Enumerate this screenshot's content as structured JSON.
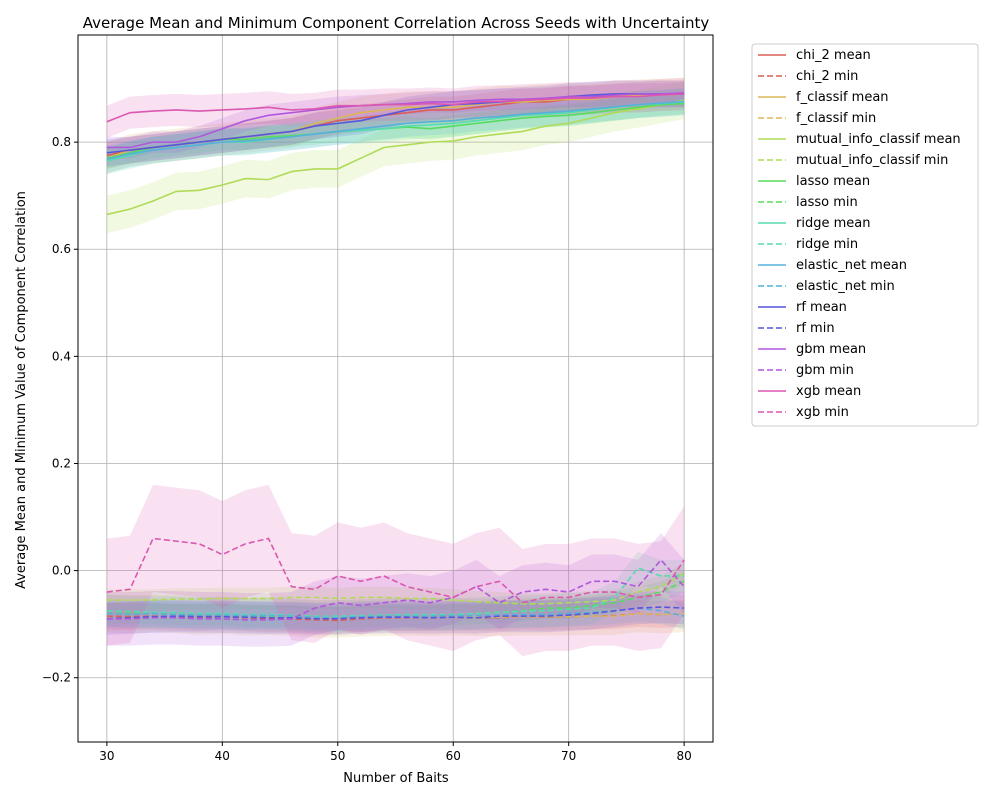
{
  "chart_data": {
    "type": "line",
    "title": "Average Mean and Minimum Component Correlation Across Seeds with Uncertainty",
    "xlabel": "Number of Baits",
    "ylabel": "Average Mean and Minimum Value of Component Correlation",
    "xlim": [
      27.5,
      82.5
    ],
    "ylim": [
      -0.32,
      1.0
    ],
    "xticks": [
      30,
      40,
      50,
      60,
      70,
      80
    ],
    "xtick_labels": [
      "30",
      "40",
      "50",
      "60",
      "70",
      "80"
    ],
    "yticks": [
      -0.2,
      0.0,
      0.2,
      0.4,
      0.6,
      0.8
    ],
    "ytick_labels": [
      "−0.2",
      "0.0",
      "0.2",
      "0.4",
      "0.6",
      "0.8"
    ],
    "grid": true,
    "legend_position": "outside-right",
    "x": [
      30,
      32,
      34,
      36,
      38,
      40,
      42,
      44,
      46,
      48,
      50,
      52,
      54,
      56,
      58,
      60,
      62,
      64,
      66,
      68,
      70,
      72,
      74,
      76,
      78,
      80
    ],
    "series": [
      {
        "name": "chi_2 mean",
        "method": "chi_2",
        "kind": "mean",
        "color": "#db5f57",
        "dashed": false,
        "values": [
          0.775,
          0.785,
          0.79,
          0.795,
          0.8,
          0.805,
          0.81,
          0.815,
          0.82,
          0.83,
          0.84,
          0.845,
          0.85,
          0.855,
          0.86,
          0.86,
          0.865,
          0.87,
          0.875,
          0.875,
          0.88,
          0.882,
          0.885,
          0.887,
          0.89,
          0.89
        ],
        "band": 0.025
      },
      {
        "name": "chi_2 min",
        "method": "chi_2",
        "kind": "min",
        "color": "#db5f57",
        "dashed": true,
        "values": [
          -0.085,
          -0.086,
          -0.085,
          -0.087,
          -0.088,
          -0.086,
          -0.088,
          -0.09,
          -0.09,
          -0.092,
          -0.093,
          -0.09,
          -0.088,
          -0.088,
          -0.088,
          -0.087,
          -0.088,
          -0.088,
          -0.086,
          -0.087,
          -0.086,
          -0.085,
          -0.084,
          -0.08,
          -0.082,
          -0.08
        ],
        "band": 0.025
      },
      {
        "name": "f_classif mean",
        "method": "f_classif",
        "kind": "mean",
        "color": "#dbb757",
        "dashed": false,
        "values": [
          0.77,
          0.785,
          0.79,
          0.795,
          0.8,
          0.805,
          0.81,
          0.815,
          0.82,
          0.835,
          0.845,
          0.855,
          0.86,
          0.865,
          0.865,
          0.865,
          0.87,
          0.875,
          0.875,
          0.878,
          0.88,
          0.88,
          0.885,
          0.887,
          0.888,
          0.89
        ],
        "band": 0.03
      },
      {
        "name": "f_classif min",
        "method": "f_classif",
        "kind": "min",
        "color": "#dbb757",
        "dashed": true,
        "values": [
          -0.08,
          -0.082,
          -0.08,
          -0.082,
          -0.085,
          -0.083,
          -0.086,
          -0.085,
          -0.087,
          -0.09,
          -0.09,
          -0.088,
          -0.087,
          -0.086,
          -0.087,
          -0.086,
          -0.087,
          -0.087,
          -0.086,
          -0.086,
          -0.086,
          -0.085,
          -0.085,
          -0.08,
          -0.082,
          -0.08
        ],
        "band": 0.035
      },
      {
        "name": "mutual_info_classif mean",
        "method": "mutual_info_classif",
        "kind": "mean",
        "color": "#b0db57",
        "dashed": false,
        "values": [
          0.665,
          0.675,
          0.69,
          0.708,
          0.71,
          0.72,
          0.732,
          0.73,
          0.745,
          0.75,
          0.75,
          0.77,
          0.79,
          0.795,
          0.8,
          0.802,
          0.81,
          0.815,
          0.82,
          0.83,
          0.835,
          0.845,
          0.855,
          0.862,
          0.87,
          0.878
        ],
        "band": 0.035
      },
      {
        "name": "mutual_info_classif min",
        "method": "mutual_info_classif",
        "kind": "min",
        "color": "#b0db57",
        "dashed": true,
        "values": [
          -0.055,
          -0.055,
          -0.055,
          -0.053,
          -0.053,
          -0.052,
          -0.052,
          -0.052,
          -0.05,
          -0.05,
          -0.052,
          -0.05,
          -0.05,
          -0.052,
          -0.052,
          -0.055,
          -0.058,
          -0.06,
          -0.062,
          -0.062,
          -0.06,
          -0.058,
          -0.055,
          -0.04,
          -0.03,
          -0.005
        ],
        "band": 0.02
      },
      {
        "name": "lasso mean",
        "method": "lasso",
        "kind": "mean",
        "color": "#57db5f",
        "dashed": false,
        "values": [
          0.77,
          0.78,
          0.79,
          0.795,
          0.8,
          0.805,
          0.805,
          0.81,
          0.812,
          0.815,
          0.82,
          0.822,
          0.825,
          0.828,
          0.825,
          0.83,
          0.835,
          0.84,
          0.845,
          0.848,
          0.85,
          0.855,
          0.86,
          0.865,
          0.87,
          0.872
        ],
        "band": 0.02
      },
      {
        "name": "lasso min",
        "method": "lasso",
        "kind": "min",
        "color": "#57db5f",
        "dashed": true,
        "values": [
          -0.08,
          -0.08,
          -0.08,
          -0.082,
          -0.082,
          -0.082,
          -0.085,
          -0.085,
          -0.085,
          -0.088,
          -0.088,
          -0.086,
          -0.085,
          -0.085,
          -0.085,
          -0.082,
          -0.08,
          -0.078,
          -0.075,
          -0.07,
          -0.07,
          -0.065,
          -0.06,
          -0.05,
          -0.04,
          -0.02
        ],
        "band": 0.02
      },
      {
        "name": "ridge mean",
        "method": "ridge",
        "kind": "mean",
        "color": "#57dbb0",
        "dashed": false,
        "values": [
          0.765,
          0.775,
          0.785,
          0.79,
          0.795,
          0.8,
          0.8,
          0.805,
          0.81,
          0.815,
          0.82,
          0.822,
          0.825,
          0.83,
          0.832,
          0.835,
          0.84,
          0.845,
          0.85,
          0.852,
          0.855,
          0.86,
          0.865,
          0.87,
          0.872,
          0.875
        ],
        "band": 0.025
      },
      {
        "name": "ridge min",
        "method": "ridge",
        "kind": "min",
        "color": "#57dbb0",
        "dashed": true,
        "values": [
          -0.075,
          -0.076,
          -0.078,
          -0.078,
          -0.08,
          -0.08,
          -0.082,
          -0.082,
          -0.083,
          -0.085,
          -0.085,
          -0.084,
          -0.083,
          -0.082,
          -0.082,
          -0.082,
          -0.08,
          -0.078,
          -0.076,
          -0.075,
          -0.072,
          -0.07,
          -0.05,
          0.005,
          -0.01,
          -0.01
        ],
        "band": 0.03
      },
      {
        "name": "elastic_net mean",
        "method": "elastic_net",
        "kind": "mean",
        "color": "#57b0db",
        "dashed": false,
        "values": [
          0.768,
          0.778,
          0.785,
          0.79,
          0.795,
          0.8,
          0.802,
          0.806,
          0.81,
          0.815,
          0.82,
          0.825,
          0.83,
          0.835,
          0.838,
          0.84,
          0.845,
          0.848,
          0.852,
          0.855,
          0.858,
          0.862,
          0.866,
          0.87,
          0.873,
          0.876
        ],
        "band": 0.025
      },
      {
        "name": "elastic_net min",
        "method": "elastic_net",
        "kind": "min",
        "color": "#57b0db",
        "dashed": true,
        "values": [
          -0.08,
          -0.082,
          -0.08,
          -0.082,
          -0.083,
          -0.083,
          -0.084,
          -0.084,
          -0.085,
          -0.087,
          -0.088,
          -0.086,
          -0.085,
          -0.085,
          -0.085,
          -0.084,
          -0.084,
          -0.083,
          -0.082,
          -0.082,
          -0.08,
          -0.078,
          -0.075,
          -0.07,
          -0.075,
          -0.085
        ],
        "band": 0.025
      },
      {
        "name": "rf mean",
        "method": "rf",
        "kind": "mean",
        "color": "#5757db",
        "dashed": false,
        "values": [
          0.78,
          0.785,
          0.79,
          0.795,
          0.8,
          0.805,
          0.81,
          0.815,
          0.82,
          0.83,
          0.835,
          0.84,
          0.85,
          0.86,
          0.865,
          0.87,
          0.872,
          0.875,
          0.878,
          0.88,
          0.885,
          0.888,
          0.89,
          0.89,
          0.89,
          0.89
        ],
        "band": 0.025
      },
      {
        "name": "rf min",
        "method": "rf",
        "kind": "min",
        "color": "#5757db",
        "dashed": true,
        "values": [
          -0.09,
          -0.088,
          -0.086,
          -0.085,
          -0.086,
          -0.086,
          -0.087,
          -0.088,
          -0.088,
          -0.09,
          -0.09,
          -0.088,
          -0.087,
          -0.087,
          -0.088,
          -0.087,
          -0.088,
          -0.085,
          -0.085,
          -0.085,
          -0.083,
          -0.08,
          -0.075,
          -0.07,
          -0.068,
          -0.07
        ],
        "band": 0.03
      },
      {
        "name": "gbm mean",
        "method": "gbm",
        "kind": "mean",
        "color": "#b057db",
        "dashed": false,
        "values": [
          0.79,
          0.79,
          0.8,
          0.8,
          0.81,
          0.825,
          0.84,
          0.85,
          0.855,
          0.86,
          0.865,
          0.868,
          0.87,
          0.872,
          0.875,
          0.875,
          0.878,
          0.88,
          0.88,
          0.882,
          0.885,
          0.885,
          0.888,
          0.89,
          0.89,
          0.892
        ],
        "band": 0.02
      },
      {
        "name": "gbm min",
        "method": "gbm",
        "kind": "min",
        "color": "#b057db",
        "dashed": true,
        "values": [
          -0.09,
          -0.09,
          -0.088,
          -0.088,
          -0.09,
          -0.09,
          -0.092,
          -0.092,
          -0.09,
          -0.07,
          -0.06,
          -0.065,
          -0.06,
          -0.055,
          -0.06,
          -0.05,
          -0.03,
          -0.06,
          -0.04,
          -0.035,
          -0.04,
          -0.02,
          -0.02,
          -0.03,
          0.02,
          -0.03
        ],
        "band": 0.05
      },
      {
        "name": "xgb mean",
        "method": "xgb",
        "kind": "mean",
        "color": "#db57b0",
        "dashed": false,
        "values": [
          0.838,
          0.855,
          0.858,
          0.86,
          0.858,
          0.86,
          0.862,
          0.865,
          0.86,
          0.862,
          0.868,
          0.868,
          0.87,
          0.87,
          0.872,
          0.87,
          0.875,
          0.876,
          0.878,
          0.88,
          0.882,
          0.882,
          0.885,
          0.885,
          0.888,
          0.89
        ],
        "band": 0.03
      },
      {
        "name": "xgb min",
        "method": "xgb",
        "kind": "min",
        "color": "#db57b0",
        "dashed": true,
        "values": [
          -0.04,
          -0.035,
          0.06,
          0.055,
          0.05,
          0.03,
          0.05,
          0.06,
          -0.03,
          -0.035,
          -0.01,
          -0.02,
          -0.01,
          -0.03,
          -0.04,
          -0.05,
          -0.03,
          -0.02,
          -0.06,
          -0.05,
          -0.05,
          -0.04,
          -0.04,
          -0.05,
          -0.045,
          0.02
        ],
        "band": 0.1
      }
    ]
  }
}
